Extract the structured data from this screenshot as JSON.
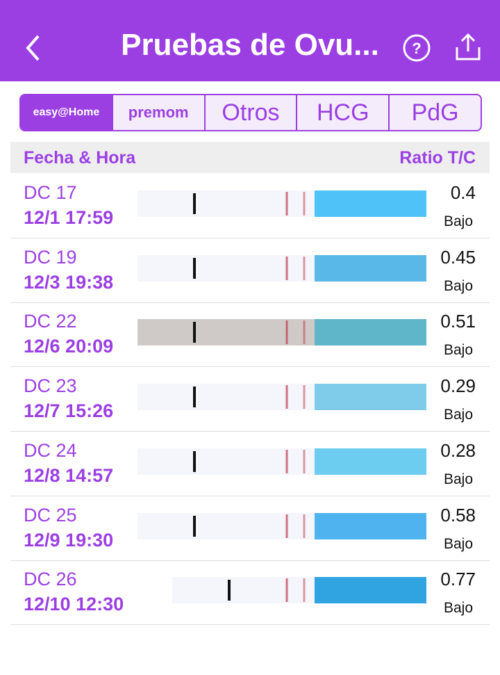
{
  "header": {
    "title": "Pruebas de Ovu..."
  },
  "tabs": [
    "easy@Home",
    "premom",
    "Otros",
    "HCG",
    "PdG"
  ],
  "table": {
    "columns": [
      "Fecha & Hora",
      "Ratio T/C"
    ],
    "rows": [
      {
        "cycle_day": "DC 17",
        "datetime": "12/1  17:59",
        "ratio": 0.4,
        "level": "Bajo"
      },
      {
        "cycle_day": "DC 19",
        "datetime": "12/3  19:38",
        "ratio": 0.45,
        "level": "Bajo"
      },
      {
        "cycle_day": "DC 22",
        "datetime": "12/6  20:09",
        "ratio": 0.51,
        "level": "Bajo"
      },
      {
        "cycle_day": "DC 23",
        "datetime": "12/7  15:26",
        "ratio": 0.29,
        "level": "Bajo"
      },
      {
        "cycle_day": "DC 24",
        "datetime": "12/8  14:57",
        "ratio": 0.28,
        "level": "Bajo"
      },
      {
        "cycle_day": "DC 25",
        "datetime": "12/9  19:30",
        "ratio": 0.58,
        "level": "Bajo"
      },
      {
        "cycle_day": "DC 26",
        "datetime": "12/10  12:30",
        "ratio": 0.77,
        "level": "Bajo"
      }
    ]
  }
}
